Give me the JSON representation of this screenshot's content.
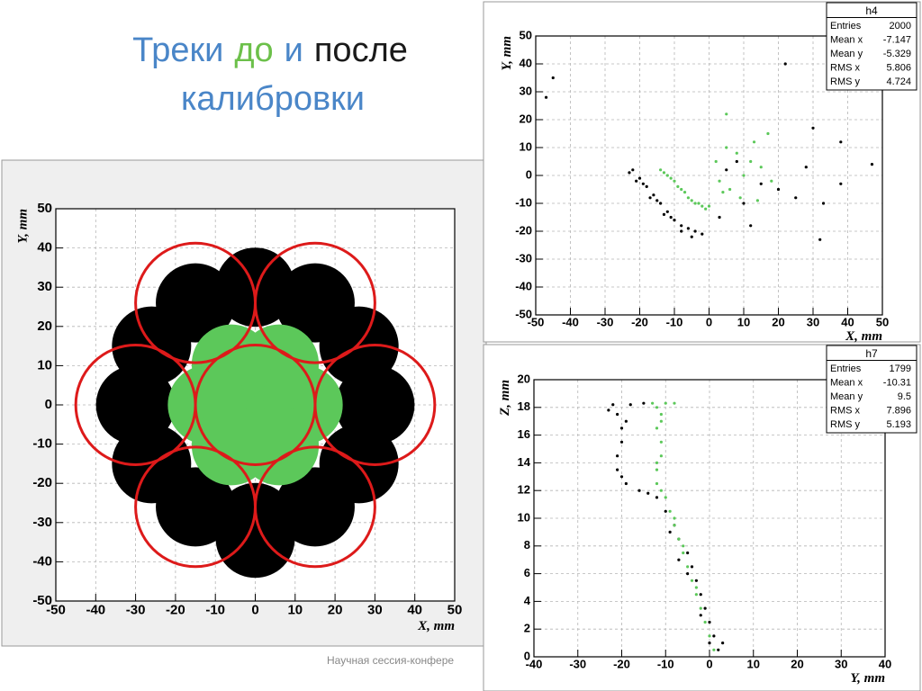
{
  "slide": {
    "title": [
      {
        "text": "Треки",
        "color": "#4a86c8"
      },
      {
        "text": "до",
        "color": "#6cc04a"
      },
      {
        "text": "и",
        "color": "#4a86c8"
      },
      {
        "text": "после",
        "color": "#1a1a1a"
      }
    ],
    "title_line2": {
      "text": "калибровки",
      "color": "#4a86c8"
    },
    "footer": "Научная сессия-конфере"
  },
  "chart_data": [
    {
      "type": "scatter",
      "xlabel": "X, mm",
      "ylabel": "Y, mm",
      "xlim": [
        -50,
        50
      ],
      "ylim": [
        -50,
        50
      ],
      "xticks": [
        -50,
        -40,
        -30,
        -20,
        -10,
        0,
        10,
        20,
        30,
        40,
        50
      ],
      "yticks": [
        -50,
        -40,
        -30,
        -20,
        -10,
        0,
        10,
        20,
        30,
        40,
        50
      ],
      "grid": true,
      "series": [
        {
          "color": "#000000",
          "x": [
            30,
            26,
            15,
            0,
            -15,
            -26,
            -30,
            -26,
            -15,
            0,
            15,
            26,
            0
          ],
          "values": [
            0,
            15,
            26,
            30,
            26,
            15,
            0,
            -15,
            -26,
            -30,
            -26,
            -15,
            -34
          ]
        },
        {
          "color": "#5cc85a",
          "x": [
            0,
            12,
            6,
            -6,
            -12,
            -6,
            6
          ],
          "values": [
            0,
            0,
            10.4,
            10.4,
            0,
            -10.4,
            -10.4
          ]
        }
      ],
      "circles": {
        "color": "#dd1a1a",
        "items": [
          {
            "x": 0,
            "y": 0,
            "r": 15
          },
          {
            "x": -30,
            "y": 0,
            "r": 15
          },
          {
            "x": 30,
            "y": 0,
            "r": 15
          },
          {
            "x": -15,
            "y": 26,
            "r": 15
          },
          {
            "x": 15,
            "y": 26,
            "r": 15
          },
          {
            "x": -15,
            "y": -26,
            "r": 15
          },
          {
            "x": 15,
            "y": -26,
            "r": 15
          }
        ]
      }
    },
    {
      "type": "scatter",
      "xlabel": "X, mm",
      "ylabel": "Y, mm",
      "xlim": [
        -50,
        50
      ],
      "ylim": [
        -50,
        50
      ],
      "xticks": [
        -50,
        -40,
        -30,
        -20,
        -10,
        0,
        10,
        20,
        30,
        40,
        50
      ],
      "yticks": [
        -50,
        -40,
        -30,
        -20,
        -10,
        0,
        10,
        20,
        30,
        40,
        50
      ],
      "grid": true,
      "stats": {
        "title": "h4",
        "rows": [
          {
            "label": "Entries",
            "value": 2000
          },
          {
            "label": "Mean x",
            "value": -7.147
          },
          {
            "label": "Mean y",
            "value": -5.329
          },
          {
            "label": "RMS x",
            "value": 5.806
          },
          {
            "label": "RMS y",
            "value": 4.724
          }
        ]
      },
      "series": [
        {
          "color": "#000000",
          "x": [
            -22,
            -20,
            -18,
            -16,
            -14,
            -12,
            -10,
            -8,
            -6,
            -4,
            -2,
            -5,
            -8,
            -13,
            -17,
            -21,
            -23,
            -19,
            -15,
            -11,
            -47,
            -45,
            22,
            30,
            33,
            38,
            38,
            47,
            28,
            32,
            10,
            5,
            15,
            20,
            25,
            12,
            3,
            8
          ],
          "values": [
            2,
            -1,
            -4,
            -7,
            -10,
            -13,
            -16,
            -18,
            -19,
            -20,
            -21,
            -22,
            -20,
            -14,
            -8,
            -2,
            1,
            -3,
            -9,
            -15,
            28,
            35,
            40,
            17,
            -10,
            12,
            -3,
            4,
            3,
            -23,
            -10,
            2,
            -3,
            -5,
            -8,
            -18,
            -15,
            5
          ]
        },
        {
          "color": "#5cc85a",
          "x": [
            -14,
            -12,
            -10,
            -8,
            -6,
            -4,
            -2,
            0,
            -13,
            -11,
            -9,
            -7,
            -5,
            -3,
            -1,
            2,
            5,
            8,
            12,
            15,
            3,
            6,
            10,
            17,
            13,
            5,
            18,
            9,
            4,
            14
          ],
          "values": [
            2,
            0,
            -2,
            -5,
            -8,
            -10,
            -11,
            -11,
            1,
            -1,
            -4,
            -6,
            -9,
            -10,
            -12,
            5,
            10,
            8,
            5,
            3,
            -2,
            -5,
            0,
            15,
            12,
            22,
            -2,
            -8,
            -6,
            -9
          ]
        }
      ]
    },
    {
      "type": "scatter",
      "xlabel": "Y, mm",
      "ylabel": "Z, mm",
      "xlim": [
        -40,
        40
      ],
      "ylim": [
        0,
        20
      ],
      "xticks": [
        -40,
        -30,
        -20,
        -10,
        0,
        10,
        20,
        30,
        40
      ],
      "yticks": [
        0,
        2,
        4,
        6,
        8,
        10,
        12,
        14,
        16,
        18,
        20
      ],
      "grid": true,
      "stats": {
        "title": "h7",
        "rows": [
          {
            "label": "Entries",
            "value": 1799
          },
          {
            "label": "Mean x",
            "value": -10.31
          },
          {
            "label": "Mean y",
            "value": 9.5
          },
          {
            "label": "RMS x",
            "value": 7.896
          },
          {
            "label": "RMS y",
            "value": 5.193
          }
        ]
      },
      "series": [
        {
          "color": "#000000",
          "x": [
            2,
            1,
            0,
            -1,
            -2,
            -3,
            -4,
            -5,
            -7,
            -8,
            -10,
            -12,
            -16,
            -19,
            -21,
            -21,
            -20,
            -20,
            -21,
            -22,
            -18,
            -15,
            3,
            0,
            -2,
            -5,
            -7,
            -9,
            -14,
            -20,
            -19,
            -23
          ],
          "values": [
            0.5,
            1.5,
            2.5,
            3.5,
            4.5,
            5.5,
            6.5,
            7.5,
            8.5,
            9.5,
            10.5,
            11.5,
            12,
            12.5,
            13.5,
            14.5,
            15.5,
            16.5,
            17.5,
            18.2,
            18.2,
            18.3,
            1,
            1,
            3,
            6,
            7,
            9,
            11.8,
            13,
            17,
            17.8
          ]
        },
        {
          "color": "#5cc85a",
          "x": [
            1,
            0,
            -1,
            -2,
            -3,
            -4,
            -5,
            -6,
            -7,
            -8,
            -9,
            -10,
            -12,
            -12,
            -11,
            -11,
            -12,
            -11,
            -13,
            -10,
            -8,
            -3,
            -6,
            -8,
            -11,
            -12,
            -11,
            -12
          ],
          "values": [
            0.5,
            1.5,
            2.5,
            3.5,
            4.5,
            5.5,
            6.5,
            7.5,
            8.5,
            9.5,
            10.5,
            11.5,
            12.5,
            13.5,
            14.5,
            15.5,
            16.5,
            17.5,
            18.3,
            18.3,
            18.3,
            5,
            8,
            10,
            12,
            14,
            17,
            18
          ]
        }
      ]
    }
  ]
}
